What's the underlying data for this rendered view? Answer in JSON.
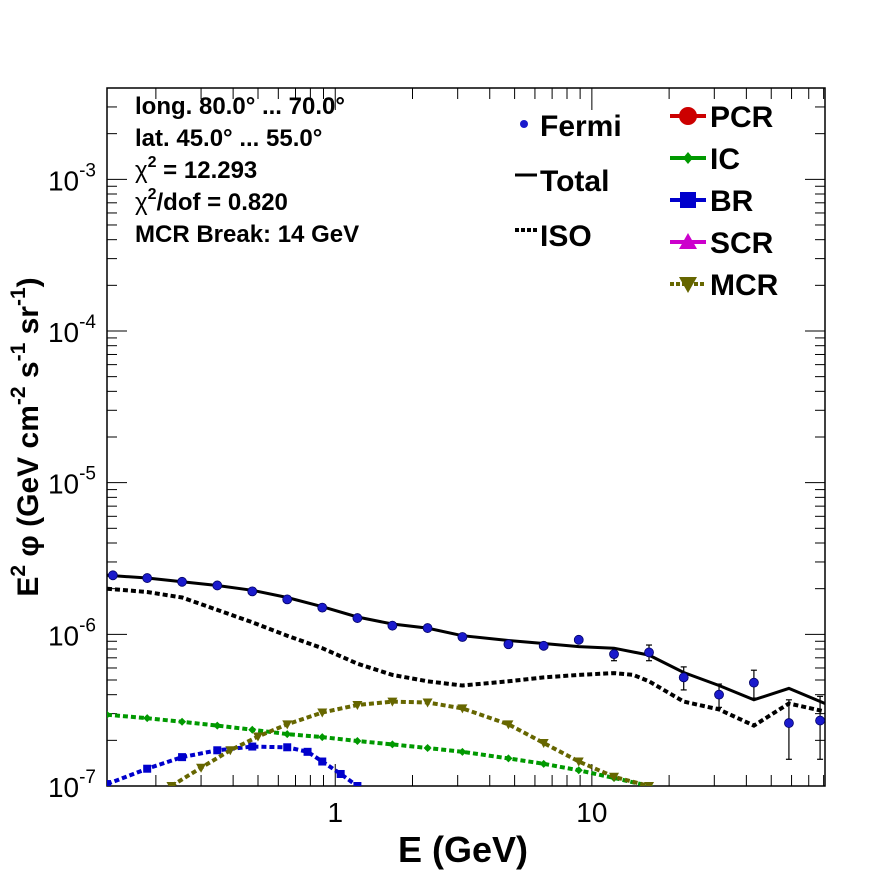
{
  "chart_data": {
    "type": "line",
    "xscale": "log",
    "yscale": "log",
    "xlim": [
      0.129,
      81
    ],
    "ylim": [
      1e-07,
      0.004
    ],
    "xlabel": "E (GeV)",
    "ylabel": {
      "prefix": "E",
      "sup1": "2",
      "mid": " φ (GeV cm",
      "sup2": "-2",
      "mid2": " s",
      "sup3": "-1",
      "mid3": " sr",
      "sup4": "-1",
      "suffix": ")"
    },
    "x_ticks": [
      {
        "value": 1,
        "label": "1"
      },
      {
        "value": 10,
        "label": "10"
      }
    ],
    "y_ticks": [
      {
        "value": 0.001,
        "base": "10",
        "exp": "-3"
      },
      {
        "value": 0.0001,
        "base": "10",
        "exp": "-4"
      },
      {
        "value": 1e-05,
        "base": "10",
        "exp": "-5"
      },
      {
        "value": 1e-06,
        "base": "10",
        "exp": "-6"
      },
      {
        "value": 1e-07,
        "base": "10",
        "exp": "-7"
      }
    ],
    "info": [
      {
        "text": "long. 80.0° ... 70.0°"
      },
      {
        "text": "lat. 45.0° ... 55.0°"
      },
      {
        "pre": "χ",
        "sup": "2",
        "post": " = 12.293"
      },
      {
        "pre": "χ",
        "sup": "2",
        "post": "/dof = 0.820"
      },
      {
        "text": "MCR Break: 14 GeV"
      }
    ],
    "legend_left": [
      {
        "name": "Fermi",
        "marker": "dot",
        "color": "#1a1acc"
      },
      {
        "name": "Total",
        "marker": "line",
        "color": "#000000"
      },
      {
        "name": "ISO",
        "marker": "dotted",
        "color": "#000000"
      }
    ],
    "legend_right": [
      {
        "name": "PCR",
        "marker": "circle",
        "color": "#cc0000"
      },
      {
        "name": "IC",
        "marker": "diamond",
        "color": "#009900"
      },
      {
        "name": "BR",
        "marker": "square",
        "color": "#0000cc"
      },
      {
        "name": "SCR",
        "marker": "triangle-up",
        "color": "#cc00cc"
      },
      {
        "name": "MCR",
        "marker": "triangle-down",
        "color": "#666600"
      }
    ],
    "fermi": [
      {
        "x": 0.136,
        "y": 2.45e-06,
        "err": 0
      },
      {
        "x": 0.185,
        "y": 2.35e-06,
        "err": 0
      },
      {
        "x": 0.253,
        "y": 2.22e-06,
        "err": 0
      },
      {
        "x": 0.347,
        "y": 2.1e-06,
        "err": 0
      },
      {
        "x": 0.475,
        "y": 1.92e-06,
        "err": 0
      },
      {
        "x": 0.65,
        "y": 1.7e-06,
        "err": 0
      },
      {
        "x": 0.89,
        "y": 1.5e-06,
        "err": 0
      },
      {
        "x": 1.22,
        "y": 1.28e-06,
        "err": 0
      },
      {
        "x": 1.67,
        "y": 1.14e-06,
        "err": 0
      },
      {
        "x": 2.29,
        "y": 1.1e-06,
        "err": 0
      },
      {
        "x": 3.13,
        "y": 9.6e-07,
        "err": 0
      },
      {
        "x": 4.73,
        "y": 8.6e-07,
        "err": 0
      },
      {
        "x": 6.49,
        "y": 8.4e-07,
        "err": 6e-09
      },
      {
        "x": 8.89,
        "y": 9.2e-07,
        "err": 1e-08
      },
      {
        "x": 12.2,
        "y": 7.4e-07,
        "err": 7e-08
      },
      {
        "x": 16.7,
        "y": 7.6e-07,
        "err": 9e-08
      },
      {
        "x": 22.8,
        "y": 5.2e-07,
        "err": 9e-08
      },
      {
        "x": 31.3,
        "y": 4e-07,
        "err": 7e-08
      },
      {
        "x": 42.8,
        "y": 4.8e-07,
        "err": 1e-07
      },
      {
        "x": 58.6,
        "y": 2.6e-07,
        "err": 1.1e-07
      },
      {
        "x": 77.5,
        "y": 2.7e-07,
        "err": 1.2e-07
      }
    ],
    "series": [
      {
        "name": "Total",
        "color": "#000000",
        "style": "solid",
        "x": [
          0.129,
          0.185,
          0.253,
          0.347,
          0.475,
          0.65,
          0.89,
          1.22,
          1.67,
          2.29,
          3.13,
          4.73,
          6.49,
          8.89,
          12.2,
          16.7,
          22.8,
          31.3,
          42.8,
          58.6,
          81
        ],
        "y": [
          2.45e-06,
          2.35e-06,
          2.22e-06,
          2.1e-06,
          1.95e-06,
          1.75e-06,
          1.52e-06,
          1.3e-06,
          1.17e-06,
          1.1e-06,
          9.8e-07,
          9.1e-07,
          8.7e-07,
          8.3e-07,
          8.1e-07,
          7.3e-07,
          5.6e-07,
          4.6e-07,
          3.7e-07,
          4.4e-07,
          3.5e-07
        ]
      },
      {
        "name": "ISO",
        "color": "#000000",
        "style": "dotted",
        "x": [
          0.129,
          0.185,
          0.253,
          0.347,
          0.475,
          0.65,
          0.89,
          1.22,
          1.67,
          2.29,
          3.13,
          4.73,
          6.49,
          8.89,
          12.2,
          14.5,
          16.7,
          22.8,
          31.3,
          42.8,
          58.6,
          81
        ],
        "y": [
          2e-06,
          1.9e-06,
          1.75e-06,
          1.45e-06,
          1.2e-06,
          9.8e-07,
          8.1e-07,
          6.4e-07,
          5.4e-07,
          4.9e-07,
          4.6e-07,
          4.9e-07,
          5.2e-07,
          5.4e-07,
          5.55e-07,
          5.4e-07,
          4.9e-07,
          3.6e-07,
          3.2e-07,
          2.5e-07,
          3.5e-07,
          3.1e-07
        ]
      },
      {
        "name": "IC",
        "color": "#009900",
        "style": "dotted",
        "x": [
          0.129,
          0.185,
          0.253,
          0.347,
          0.475,
          0.65,
          0.89,
          1.22,
          1.67,
          2.29,
          3.13,
          4.73,
          6.49,
          8.89,
          12.2,
          16.7
        ],
        "y": [
          2.95e-07,
          2.8e-07,
          2.65e-07,
          2.5e-07,
          2.35e-07,
          2.2e-07,
          2.1e-07,
          1.98e-07,
          1.88e-07,
          1.78e-07,
          1.68e-07,
          1.52e-07,
          1.4e-07,
          1.27e-07,
          1.13e-07,
          1e-07
        ]
      },
      {
        "name": "BR",
        "color": "#0000cc",
        "style": "dotted",
        "x": [
          0.129,
          0.185,
          0.253,
          0.347,
          0.475,
          0.65,
          0.78,
          0.89,
          1.05,
          1.22
        ],
        "y": [
          1.03e-07,
          1.3e-07,
          1.55e-07,
          1.72e-07,
          1.82e-07,
          1.8e-07,
          1.68e-07,
          1.45e-07,
          1.2e-07,
          1e-07
        ]
      },
      {
        "name": "MCR",
        "color": "#666600",
        "style": "dotted",
        "x": [
          0.23,
          0.3,
          0.39,
          0.5,
          0.65,
          0.89,
          1.22,
          1.67,
          2.29,
          3.13,
          4.73,
          6.49,
          8.89,
          12.2,
          16.7
        ],
        "y": [
          1e-07,
          1.32e-07,
          1.72e-07,
          2.12e-07,
          2.55e-07,
          3.05e-07,
          3.42e-07,
          3.6e-07,
          3.55e-07,
          3.25e-07,
          2.55e-07,
          1.92e-07,
          1.45e-07,
          1.15e-07,
          1e-07
        ]
      }
    ]
  }
}
